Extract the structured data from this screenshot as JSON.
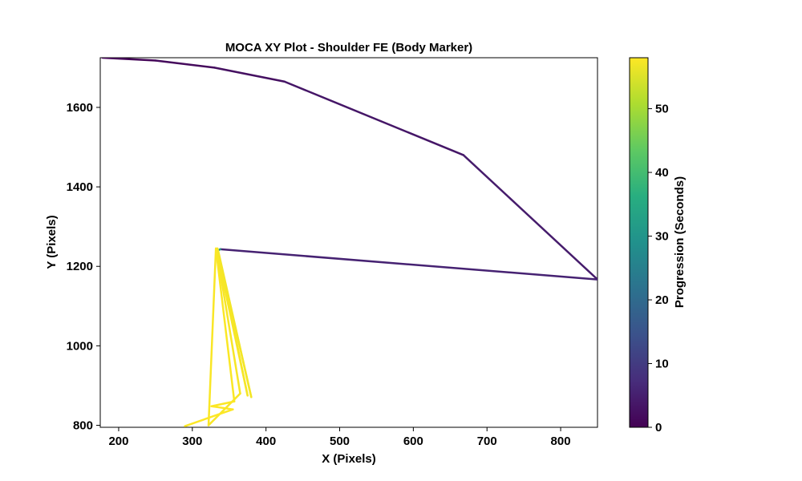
{
  "chart_data": {
    "type": "line",
    "title": "MOCA XY Plot - Shoulder FE (Body Marker)",
    "xlabel": "X (Pixels)",
    "ylabel": "Y (Pixels)",
    "xlim": [
      175,
      850
    ],
    "ylim": [
      795,
      1725
    ],
    "xticks": [
      200,
      300,
      400,
      500,
      600,
      700,
      800
    ],
    "yticks": [
      800,
      1000,
      1200,
      1400,
      1600
    ],
    "grid": false,
    "colorbar": {
      "label": "Progression (Seconds)",
      "range": [
        0,
        58
      ],
      "ticks": [
        0,
        10,
        20,
        30,
        40,
        50
      ],
      "colormap": "viridis"
    },
    "points": [
      {
        "x": 178,
        "y": 1725,
        "t": 0
      },
      {
        "x": 250,
        "y": 1718,
        "t": 1
      },
      {
        "x": 330,
        "y": 1700,
        "t": 2
      },
      {
        "x": 425,
        "y": 1665,
        "t": 3
      },
      {
        "x": 668,
        "y": 1480,
        "t": 4
      },
      {
        "x": 850,
        "y": 1167,
        "t": 5
      },
      {
        "x": 338,
        "y": 1243,
        "t": 6
      },
      {
        "x": 335,
        "y": 1240,
        "t": 56
      },
      {
        "x": 380,
        "y": 871,
        "t": 57
      },
      {
        "x": 334,
        "y": 1245,
        "t": 57.2
      },
      {
        "x": 375,
        "y": 875,
        "t": 57.3
      },
      {
        "x": 333,
        "y": 1240,
        "t": 57.4
      },
      {
        "x": 365,
        "y": 880,
        "t": 57.5
      },
      {
        "x": 322,
        "y": 800,
        "t": 57.6
      },
      {
        "x": 332,
        "y": 1245,
        "t": 57.7
      },
      {
        "x": 357,
        "y": 860,
        "t": 57.8
      },
      {
        "x": 326,
        "y": 848,
        "t": 57.85
      },
      {
        "x": 355,
        "y": 840,
        "t": 57.9
      },
      {
        "x": 290,
        "y": 798,
        "t": 58
      }
    ]
  }
}
